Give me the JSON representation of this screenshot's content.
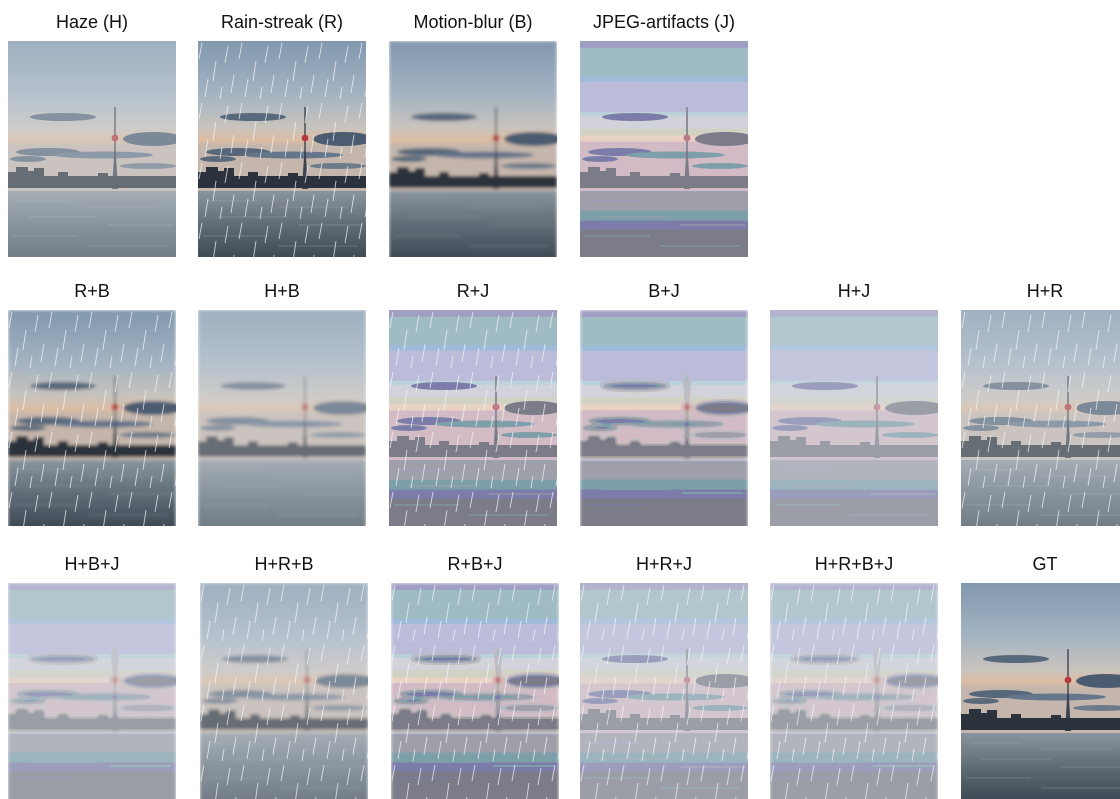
{
  "rows": [
    [
      "Haze (H)",
      "Rain-streak (R)",
      "Motion-blur (B)",
      "JPEG-artifacts (J)"
    ],
    [
      "R+B",
      "H+B",
      "R+J",
      "B+J",
      "H+J",
      "H+R"
    ],
    [
      "H+B+J",
      "H+R+B",
      "R+B+J",
      "H+R+J",
      "H+R+B+J",
      "GT"
    ]
  ]
}
